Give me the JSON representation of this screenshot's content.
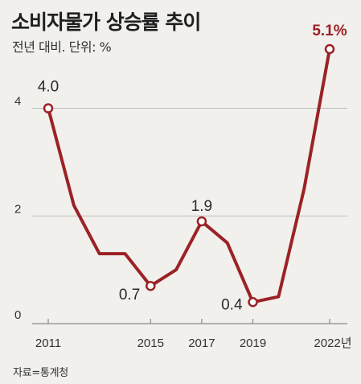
{
  "chart_data": {
    "type": "line",
    "title": "소비자물가 상승률 추이",
    "subtitle": "전년 대비. 단위: %",
    "source": "자료=통계청",
    "x": [
      2011,
      2012,
      2013,
      2014,
      2015,
      2016,
      2017,
      2018,
      2019,
      2020,
      2021,
      2022
    ],
    "values": [
      4.0,
      2.2,
      1.3,
      1.3,
      0.7,
      1.0,
      1.9,
      1.5,
      0.4,
      0.5,
      2.5,
      5.1
    ],
    "xlim": [
      2011,
      2022
    ],
    "ylim": [
      0,
      5.1
    ],
    "y_ticks": [
      "0",
      "2",
      "4"
    ],
    "x_tick_labels": [
      {
        "x": 2011,
        "label": "2011"
      },
      {
        "x": 2015,
        "label": "2015"
      },
      {
        "x": 2017,
        "label": "2017"
      },
      {
        "x": 2019,
        "label": "2019"
      },
      {
        "x": 2022,
        "label": "2022년"
      }
    ],
    "data_labels": [
      {
        "x": 2011,
        "label": "4.0",
        "highlight": false
      },
      {
        "x": 2015,
        "label": "0.7",
        "highlight": false
      },
      {
        "x": 2017,
        "label": "1.9",
        "highlight": false
      },
      {
        "x": 2019,
        "label": "0.4",
        "highlight": false
      },
      {
        "x": 2022,
        "label": "5.1%",
        "highlight": true
      }
    ],
    "markers_at": [
      2011,
      2015,
      2017,
      2019,
      2022
    ],
    "grid": true,
    "legend": "none",
    "colors": {
      "line": "#9b2226",
      "marker_fill": "#ffffff",
      "grid": "#bdbdbd",
      "background": "#f1f0ec",
      "highlight_label": "#9b2226"
    }
  }
}
